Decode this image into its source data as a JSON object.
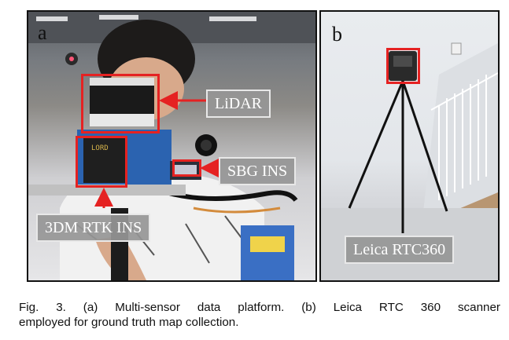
{
  "figure": {
    "panel_a": {
      "letter": "a",
      "labels": {
        "lidar": "LiDAR",
        "sbg": "SBG INS",
        "rtk": "3DM RTK INS"
      },
      "device_text": "LORD"
    },
    "panel_b": {
      "letter": "b",
      "label": "Leica RTC360"
    },
    "caption_line1": "Fig. 3.  (a) Multi-sensor data platform. (b) Leica RTC 360 scanner",
    "caption_line2": "employed for ground truth map collection.",
    "colors": {
      "annotation": "#e52222",
      "label_bg": "#969696"
    }
  }
}
